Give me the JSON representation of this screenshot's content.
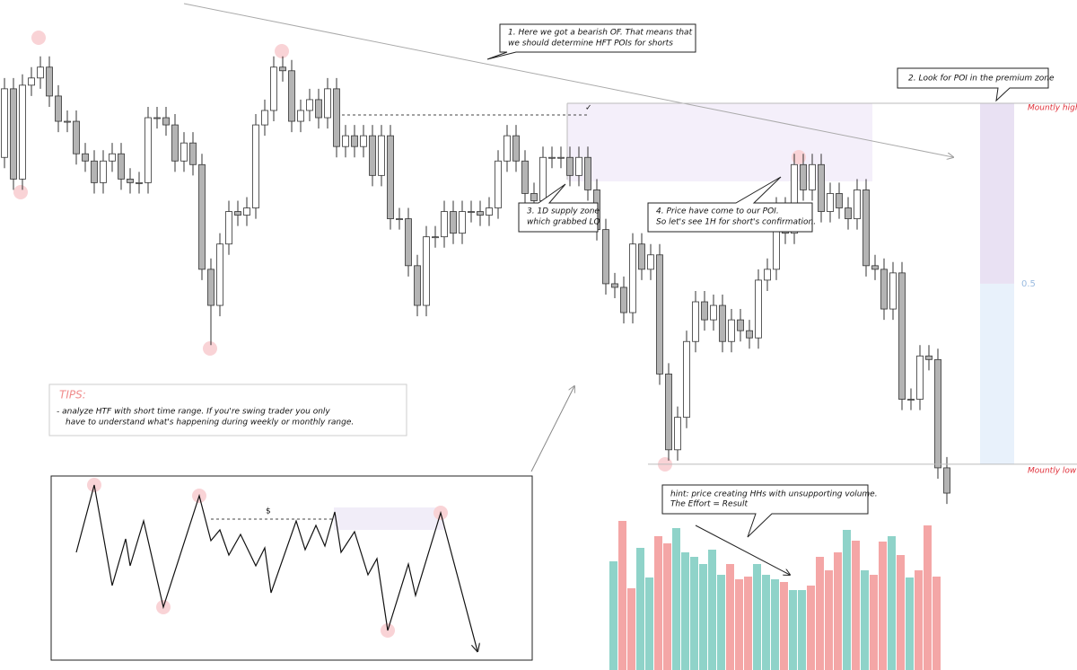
{
  "chart_data": {
    "type": "candlestick",
    "ylim": [
      -0.57,
      1.286
    ],
    "open": [
      0.85,
      1.04,
      0.79,
      1.05,
      1.07,
      1.1,
      1.02,
      0.95,
      0.95,
      0.86,
      0.84,
      0.78,
      0.84,
      0.86,
      0.79,
      0.78,
      0.78,
      0.96,
      0.96,
      0.94,
      0.84,
      0.89,
      0.83,
      0.54,
      0.44,
      0.61,
      0.7,
      0.69,
      0.71,
      0.94,
      0.98,
      1.1,
      1.09,
      0.95,
      0.98,
      1.01,
      0.96,
      1.04,
      0.88,
      0.91,
      0.88,
      0.91,
      0.8,
      0.91,
      0.68,
      0.68,
      0.55,
      0.44,
      0.63,
      0.63,
      0.7,
      0.64,
      0.7,
      0.7,
      0.69,
      0.71,
      0.84,
      0.91,
      0.84,
      0.75,
      0.73,
      0.85,
      0.85,
      0.85,
      0.8,
      0.85,
      0.76,
      0.65,
      0.5,
      0.49,
      0.42,
      0.61,
      0.54,
      0.58,
      0.25,
      0.04,
      0.13,
      0.34,
      0.45,
      0.4,
      0.44,
      0.34,
      0.4,
      0.37,
      0.35,
      0.51,
      0.54,
      0.71,
      0.64,
      0.83,
      0.76,
      0.83,
      0.7,
      0.75,
      0.71,
      0.68,
      0.76,
      0.55,
      0.54,
      0.43,
      0.53,
      0.18,
      0.18,
      0.3,
      0.29,
      -0.01
    ],
    "close": [
      1.04,
      0.79,
      1.05,
      1.07,
      1.1,
      1.02,
      0.95,
      0.95,
      0.86,
      0.84,
      0.78,
      0.84,
      0.86,
      0.79,
      0.78,
      0.78,
      0.96,
      0.96,
      0.94,
      0.84,
      0.89,
      0.83,
      0.54,
      0.44,
      0.61,
      0.7,
      0.69,
      0.71,
      0.94,
      0.98,
      1.1,
      1.09,
      0.95,
      0.98,
      1.01,
      0.96,
      1.04,
      0.88,
      0.91,
      0.88,
      0.91,
      0.8,
      0.91,
      0.68,
      0.68,
      0.55,
      0.44,
      0.63,
      0.63,
      0.7,
      0.64,
      0.7,
      0.7,
      0.69,
      0.71,
      0.84,
      0.91,
      0.84,
      0.75,
      0.73,
      0.85,
      0.85,
      0.85,
      0.8,
      0.85,
      0.76,
      0.65,
      0.5,
      0.49,
      0.42,
      0.61,
      0.54,
      0.58,
      0.25,
      0.04,
      0.13,
      0.34,
      0.45,
      0.4,
      0.44,
      0.34,
      0.4,
      0.37,
      0.35,
      0.51,
      0.54,
      0.71,
      0.64,
      0.83,
      0.76,
      0.83,
      0.7,
      0.75,
      0.71,
      0.68,
      0.76,
      0.55,
      0.54,
      0.43,
      0.53,
      0.18,
      0.18,
      0.3,
      0.29,
      -0.01,
      -0.08
    ],
    "high": [
      1.07,
      1.07,
      1.08,
      1.1,
      1.13,
      1.13,
      1.05,
      0.98,
      0.98,
      0.89,
      0.87,
      0.87,
      0.89,
      0.89,
      0.82,
      0.81,
      0.99,
      0.99,
      0.99,
      0.97,
      0.92,
      0.92,
      0.86,
      0.57,
      0.64,
      0.73,
      0.73,
      0.74,
      0.97,
      1.01,
      1.13,
      1.13,
      1.12,
      1.01,
      1.04,
      1.04,
      1.07,
      1.07,
      0.94,
      0.94,
      0.94,
      0.94,
      0.94,
      0.94,
      0.71,
      0.71,
      0.58,
      0.66,
      0.66,
      0.73,
      0.73,
      0.73,
      0.73,
      0.73,
      0.74,
      0.87,
      0.94,
      0.94,
      0.87,
      0.78,
      0.88,
      0.88,
      0.88,
      0.88,
      0.88,
      0.88,
      0.79,
      0.68,
      0.53,
      0.52,
      0.64,
      0.64,
      0.61,
      0.61,
      0.28,
      0.16,
      0.37,
      0.48,
      0.48,
      0.47,
      0.47,
      0.43,
      0.43,
      0.4,
      0.54,
      0.57,
      0.74,
      0.74,
      0.86,
      0.86,
      0.86,
      0.86,
      0.78,
      0.78,
      0.74,
      0.79,
      0.79,
      0.58,
      0.57,
      0.56,
      0.56,
      0.21,
      0.33,
      0.33,
      0.32,
      0.02
    ],
    "low": [
      0.82,
      0.76,
      0.76,
      1.02,
      1.04,
      0.99,
      0.92,
      0.92,
      0.83,
      0.81,
      0.75,
      0.75,
      0.81,
      0.76,
      0.75,
      0.75,
      0.75,
      0.93,
      0.91,
      0.81,
      0.81,
      0.8,
      0.51,
      0.33,
      0.41,
      0.58,
      0.66,
      0.66,
      0.68,
      0.91,
      0.95,
      1.06,
      0.92,
      0.92,
      0.95,
      0.93,
      0.93,
      0.85,
      0.85,
      0.85,
      0.85,
      0.77,
      0.77,
      0.65,
      0.65,
      0.52,
      0.41,
      0.41,
      0.6,
      0.6,
      0.61,
      0.61,
      0.67,
      0.66,
      0.66,
      0.68,
      0.81,
      0.81,
      0.72,
      0.7,
      0.7,
      0.82,
      0.82,
      0.77,
      0.77,
      0.73,
      0.62,
      0.47,
      0.46,
      0.39,
      0.39,
      0.51,
      0.51,
      0.22,
      0.01,
      0.01,
      0.1,
      0.31,
      0.37,
      0.37,
      0.31,
      0.31,
      0.34,
      0.32,
      0.32,
      0.48,
      0.51,
      0.61,
      0.61,
      0.73,
      0.73,
      0.67,
      0.67,
      0.68,
      0.65,
      0.65,
      0.52,
      0.51,
      0.4,
      0.4,
      0.15,
      0.15,
      0.15,
      0.26,
      -0.04,
      -0.11
    ],
    "fib_levels": [
      {
        "value": 1,
        "label": "Mountly high"
      },
      {
        "value": 0.5,
        "label": "0.5"
      },
      {
        "value": 0,
        "label": "Mountly low"
      }
    ],
    "volume": {
      "ylim": [
        0,
        168
      ],
      "values": [
        121,
        166,
        91,
        136,
        103,
        149,
        141,
        158,
        131,
        126,
        118,
        134,
        106,
        118,
        101,
        104,
        118,
        106,
        101,
        98,
        89,
        89,
        94,
        126,
        111,
        131,
        156,
        144,
        111,
        106,
        143,
        149,
        128,
        103,
        111,
        161,
        104
      ],
      "colors": [
        "#8fd3c9",
        "#f4a6a6",
        "#f4a6a6",
        "#8fd3c9",
        "#8fd3c9",
        "#f4a6a6",
        "#f4a6a6",
        "#8fd3c9",
        "#8fd3c9",
        "#8fd3c9",
        "#8fd3c9",
        "#8fd3c9",
        "#8fd3c9",
        "#f4a6a6",
        "#f4a6a6",
        "#f4a6a6",
        "#8fd3c9",
        "#8fd3c9",
        "#8fd3c9",
        "#f4a6a6",
        "#8fd3c9",
        "#8fd3c9",
        "#f4a6a6",
        "#f4a6a6",
        "#f4a6a6",
        "#f4a6a6",
        "#8fd3c9",
        "#f4a6a6",
        "#8fd3c9",
        "#f4a6a6",
        "#f4a6a6",
        "#8fd3c9",
        "#f4a6a6",
        "#8fd3c9",
        "#f4a6a6",
        "#f4a6a6",
        "#f4a6a6"
      ]
    },
    "annotations": {
      "bearish": [
        "1. Here we got a bearish OF. That means that",
        "we should determine HFT POIs for shorts"
      ],
      "premium": [
        "2. Look for POI in the premium zone"
      ],
      "supply": [
        "3. 1D supply zone",
        "which grabbed LQ"
      ],
      "poi": [
        "4. Price have come to our POI.",
        "So let's see 1H for short's confirmation."
      ],
      "hint": [
        "hint: price creating HHs with unsupporting volume.",
        "The Effort = Result"
      ],
      "check": "✓",
      "liquidity": "$"
    },
    "tips": {
      "title": "TIPS:",
      "lines": [
        "- analyze HTF with short time range. If you're swing trader you only",
        "have to understand what's happening during weekly or monthly range."
      ]
    }
  }
}
